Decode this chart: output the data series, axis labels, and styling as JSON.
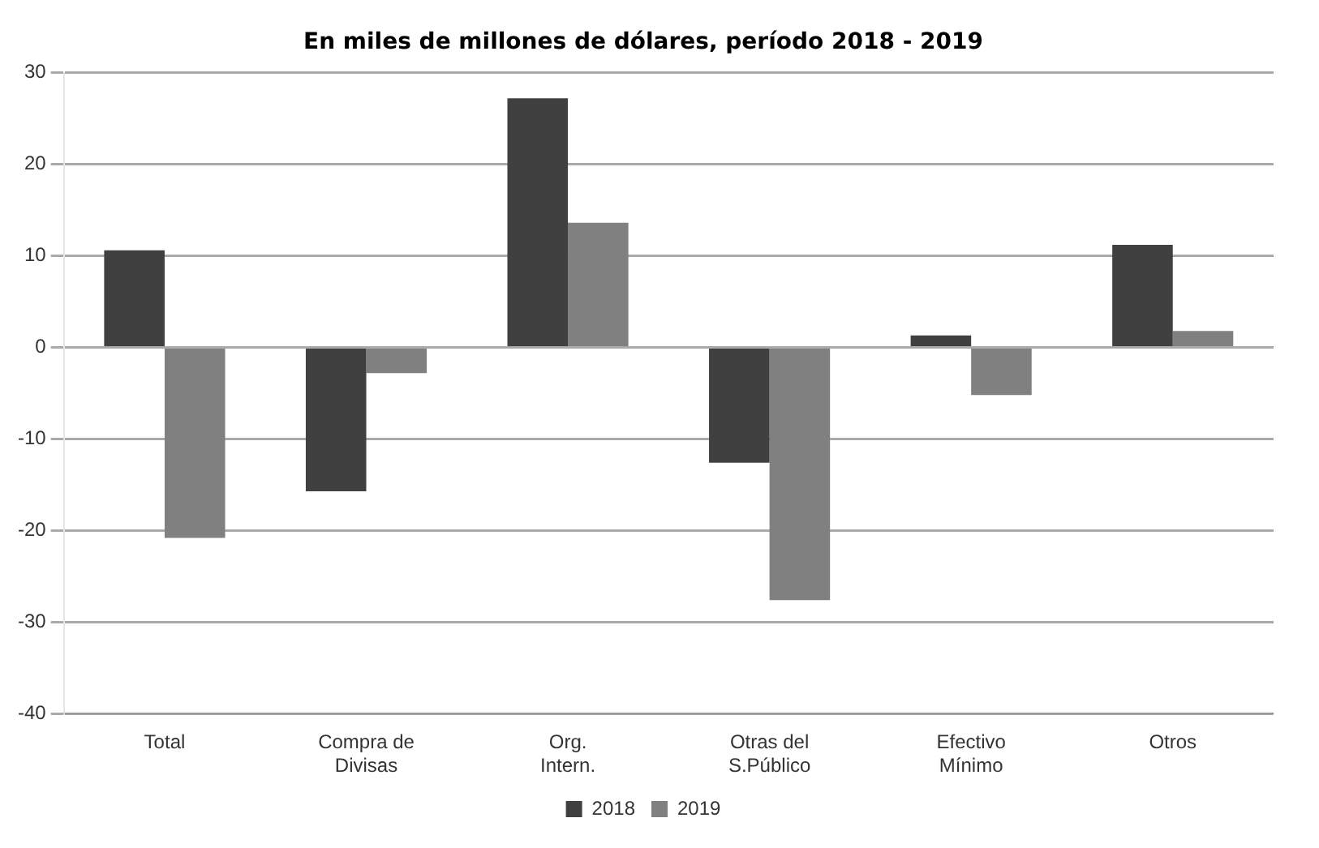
{
  "chart_data": {
    "type": "bar",
    "title": "En miles de millones de dólares, período 2018 - 2019",
    "categories": [
      "Total",
      "Compra de Divisas",
      "Org. Intern.",
      "Otras del S.Público",
      "Efectivo Mínimo",
      "Otros"
    ],
    "series": [
      {
        "name": "2018",
        "color": "#404040",
        "values": [
          10.6,
          -15.7,
          27.2,
          -12.6,
          1.3,
          11.2
        ]
      },
      {
        "name": "2019",
        "color": "#808080",
        "values": [
          -20.8,
          -2.8,
          13.6,
          -27.6,
          -5.2,
          1.8
        ]
      }
    ],
    "ylim": [
      -40,
      30
    ],
    "yticks": [
      -40,
      -30,
      -20,
      -10,
      0,
      10,
      20,
      30
    ],
    "grid": "y",
    "legend": "bottom"
  }
}
